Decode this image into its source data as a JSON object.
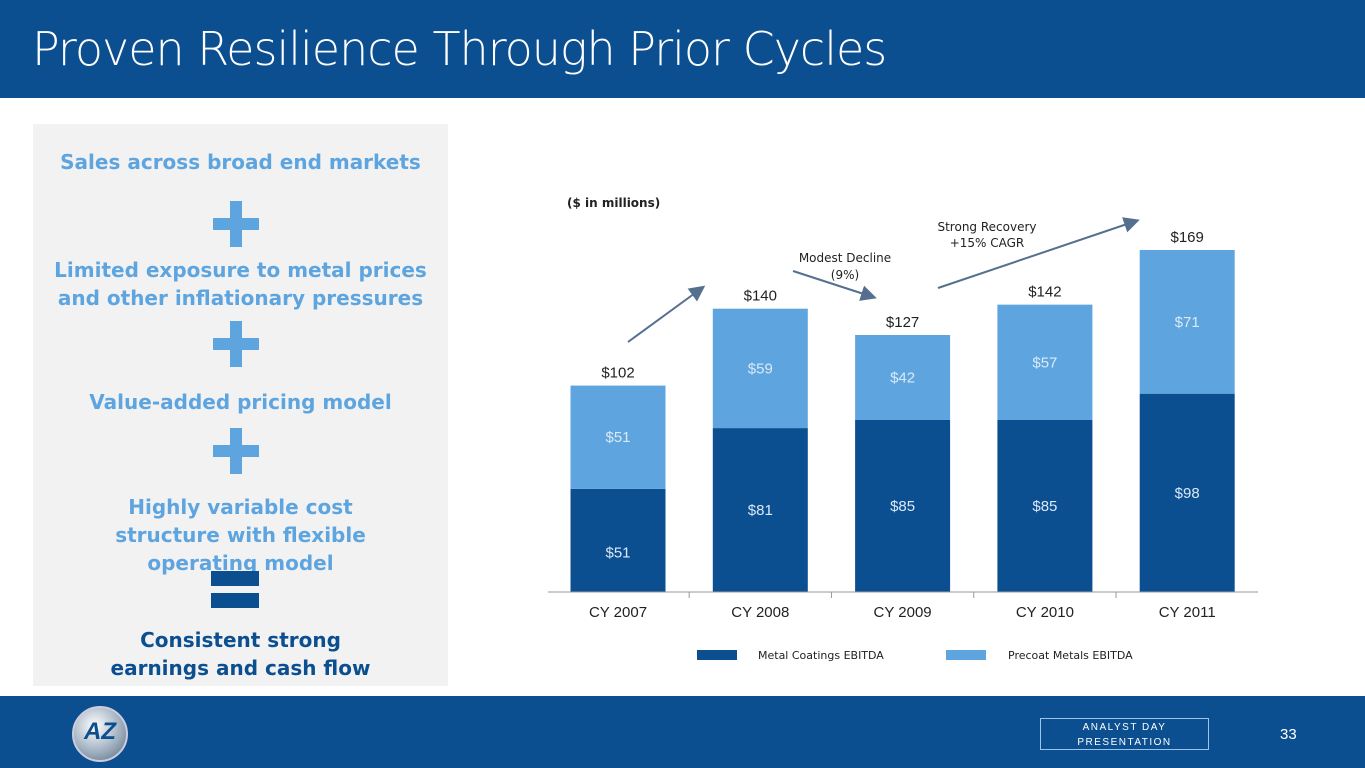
{
  "title": "Proven Resilience Through Prior Cycles",
  "panel": {
    "items": [
      "Sales across broad end markets",
      "Limited exposure to metal prices and other inflationary pressures",
      "Value-added pricing model",
      "Highly variable cost structure with flexible operating model"
    ],
    "conclusion": "Consistent strong earnings and cash flow"
  },
  "footer": {
    "badge": "ANALYST DAY PRESENTATION",
    "page": "33",
    "logo_text": "AZZ"
  },
  "chart_data": {
    "type": "bar",
    "stacked": true,
    "unit_note": "($ in millions)",
    "categories": [
      "CY 2007",
      "CY 2008",
      "CY 2009",
      "CY 2010",
      "CY 2011"
    ],
    "series": [
      {
        "name": "Metal Coatings EBITDA",
        "color": "#0c4f91",
        "values": [
          51,
          81,
          85,
          85,
          98
        ],
        "labels": [
          "$51",
          "$81",
          "$85",
          "$85",
          "$98"
        ]
      },
      {
        "name": "Precoat Metals EBITDA",
        "color": "#5ea5e0",
        "values": [
          51,
          59,
          42,
          57,
          71
        ],
        "labels": [
          "$51",
          "$59",
          "$42",
          "$57",
          "$71"
        ]
      }
    ],
    "totals": [
      "$102",
      "$140",
      "$127",
      "$142",
      "$169"
    ],
    "total_values": [
      102,
      140,
      127,
      142,
      169
    ],
    "annotations": {
      "decline": [
        "Modest Decline",
        "(9%)"
      ],
      "recovery": [
        "Strong Recovery",
        "+15% CAGR"
      ]
    },
    "ylim": [
      0,
      169
    ],
    "legend": "bottom"
  }
}
